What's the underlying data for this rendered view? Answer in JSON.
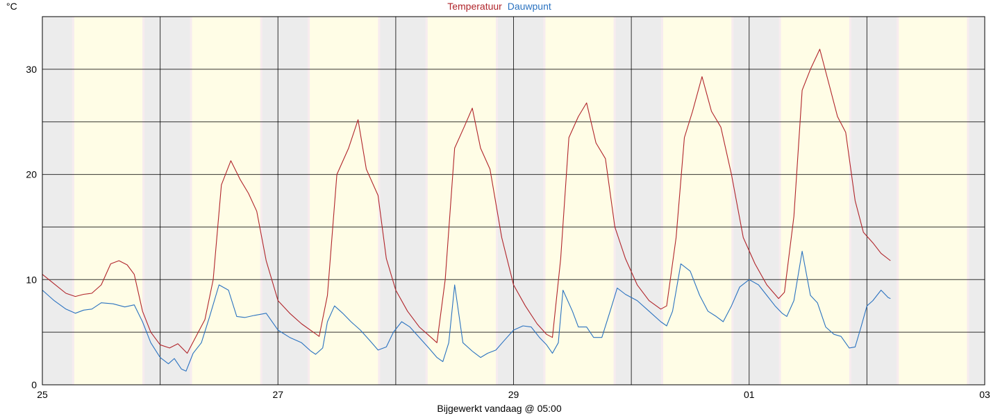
{
  "chart_data": {
    "type": "line",
    "unit": "°C",
    "footer": "Bijgewerkt vandaag @ 05:00",
    "ylim": [
      0,
      35
    ],
    "yticks": [
      0,
      10,
      20,
      30
    ],
    "ygrid": [
      5,
      10,
      15,
      20,
      25,
      30
    ],
    "xlim": [
      0,
      8
    ],
    "xticks": [
      {
        "x": 0,
        "label": "25"
      },
      {
        "x": 2,
        "label": "27"
      },
      {
        "x": 4,
        "label": "29"
      },
      {
        "x": 6,
        "label": "01"
      },
      {
        "x": 8,
        "label": "03"
      }
    ],
    "vgrid": [
      1,
      2,
      3,
      4,
      5,
      6,
      7
    ],
    "day_bands": [
      [
        0.27,
        0.85
      ],
      [
        1.27,
        1.85
      ],
      [
        2.27,
        2.85
      ],
      [
        3.27,
        3.85
      ],
      [
        4.27,
        4.85
      ],
      [
        5.27,
        5.85
      ],
      [
        6.27,
        6.85
      ],
      [
        7.27,
        7.85
      ]
    ],
    "colors": {
      "day": "#fffde6",
      "night": "#ececec",
      "temp": "#b0242a",
      "dew": "#2a72c0",
      "grid": "#000000"
    },
    "series": [
      {
        "name": "Temperatuur",
        "color": "#b0242a",
        "points": [
          [
            0.0,
            10.5
          ],
          [
            0.1,
            9.6
          ],
          [
            0.2,
            8.7
          ],
          [
            0.28,
            8.4
          ],
          [
            0.35,
            8.6
          ],
          [
            0.42,
            8.7
          ],
          [
            0.5,
            9.5
          ],
          [
            0.58,
            11.5
          ],
          [
            0.65,
            11.8
          ],
          [
            0.72,
            11.4
          ],
          [
            0.78,
            10.5
          ],
          [
            0.85,
            7.0
          ],
          [
            0.92,
            5.0
          ],
          [
            1.0,
            3.8
          ],
          [
            1.08,
            3.5
          ],
          [
            1.15,
            3.9
          ],
          [
            1.23,
            3.0
          ],
          [
            1.3,
            4.5
          ],
          [
            1.38,
            6.2
          ],
          [
            1.45,
            10.0
          ],
          [
            1.52,
            19.0
          ],
          [
            1.6,
            21.3
          ],
          [
            1.68,
            19.5
          ],
          [
            1.75,
            18.2
          ],
          [
            1.82,
            16.5
          ],
          [
            1.9,
            11.8
          ],
          [
            2.0,
            8.0
          ],
          [
            2.1,
            6.8
          ],
          [
            2.2,
            5.8
          ],
          [
            2.3,
            5.0
          ],
          [
            2.35,
            4.6
          ],
          [
            2.42,
            8.5
          ],
          [
            2.5,
            20.0
          ],
          [
            2.6,
            22.5
          ],
          [
            2.68,
            25.2
          ],
          [
            2.75,
            20.5
          ],
          [
            2.85,
            18.0
          ],
          [
            2.92,
            12.0
          ],
          [
            3.0,
            9.0
          ],
          [
            3.1,
            7.0
          ],
          [
            3.2,
            5.5
          ],
          [
            3.3,
            4.5
          ],
          [
            3.35,
            4.0
          ],
          [
            3.42,
            10.0
          ],
          [
            3.5,
            22.5
          ],
          [
            3.58,
            24.5
          ],
          [
            3.65,
            26.3
          ],
          [
            3.72,
            22.5
          ],
          [
            3.8,
            20.5
          ],
          [
            3.9,
            14.0
          ],
          [
            4.0,
            9.5
          ],
          [
            4.1,
            7.5
          ],
          [
            4.2,
            5.8
          ],
          [
            4.28,
            4.8
          ],
          [
            4.33,
            4.5
          ],
          [
            4.4,
            12.0
          ],
          [
            4.47,
            23.5
          ],
          [
            4.55,
            25.5
          ],
          [
            4.62,
            26.8
          ],
          [
            4.7,
            23.0
          ],
          [
            4.78,
            21.5
          ],
          [
            4.86,
            15.0
          ],
          [
            4.95,
            12.0
          ],
          [
            5.05,
            9.5
          ],
          [
            5.15,
            8.0
          ],
          [
            5.25,
            7.2
          ],
          [
            5.3,
            7.5
          ],
          [
            5.38,
            14.0
          ],
          [
            5.45,
            23.5
          ],
          [
            5.52,
            26.0
          ],
          [
            5.6,
            29.3
          ],
          [
            5.68,
            26.0
          ],
          [
            5.76,
            24.5
          ],
          [
            5.85,
            20.0
          ],
          [
            5.95,
            14.0
          ],
          [
            6.05,
            11.5
          ],
          [
            6.15,
            9.5
          ],
          [
            6.25,
            8.2
          ],
          [
            6.3,
            8.8
          ],
          [
            6.38,
            16.0
          ],
          [
            6.45,
            28.0
          ],
          [
            6.52,
            30.0
          ],
          [
            6.6,
            31.9
          ],
          [
            6.68,
            28.5
          ],
          [
            6.75,
            25.5
          ],
          [
            6.82,
            24.0
          ],
          [
            6.9,
            17.5
          ],
          [
            6.97,
            14.5
          ],
          [
            7.05,
            13.5
          ],
          [
            7.12,
            12.5
          ],
          [
            7.2,
            11.8
          ]
        ]
      },
      {
        "name": "Dauwpunt",
        "color": "#2a72c0",
        "points": [
          [
            0.0,
            9.0
          ],
          [
            0.1,
            8.0
          ],
          [
            0.2,
            7.2
          ],
          [
            0.28,
            6.8
          ],
          [
            0.35,
            7.1
          ],
          [
            0.42,
            7.2
          ],
          [
            0.5,
            7.8
          ],
          [
            0.6,
            7.7
          ],
          [
            0.7,
            7.4
          ],
          [
            0.78,
            7.6
          ],
          [
            0.85,
            6.0
          ],
          [
            0.92,
            4.0
          ],
          [
            1.0,
            2.6
          ],
          [
            1.07,
            2.0
          ],
          [
            1.12,
            2.5
          ],
          [
            1.18,
            1.5
          ],
          [
            1.22,
            1.3
          ],
          [
            1.28,
            3.0
          ],
          [
            1.35,
            4.0
          ],
          [
            1.42,
            6.5
          ],
          [
            1.5,
            9.5
          ],
          [
            1.58,
            9.0
          ],
          [
            1.65,
            6.5
          ],
          [
            1.72,
            6.4
          ],
          [
            1.8,
            6.6
          ],
          [
            1.9,
            6.8
          ],
          [
            2.0,
            5.2
          ],
          [
            2.1,
            4.5
          ],
          [
            2.2,
            4.0
          ],
          [
            2.28,
            3.2
          ],
          [
            2.32,
            2.9
          ],
          [
            2.38,
            3.5
          ],
          [
            2.42,
            6.0
          ],
          [
            2.48,
            7.5
          ],
          [
            2.55,
            6.8
          ],
          [
            2.62,
            6.0
          ],
          [
            2.7,
            5.2
          ],
          [
            2.78,
            4.2
          ],
          [
            2.85,
            3.3
          ],
          [
            2.92,
            3.6
          ],
          [
            2.98,
            5.0
          ],
          [
            3.05,
            6.0
          ],
          [
            3.12,
            5.5
          ],
          [
            3.2,
            4.5
          ],
          [
            3.28,
            3.5
          ],
          [
            3.35,
            2.6
          ],
          [
            3.4,
            2.2
          ],
          [
            3.45,
            4.0
          ],
          [
            3.5,
            9.5
          ],
          [
            3.57,
            4.0
          ],
          [
            3.65,
            3.2
          ],
          [
            3.72,
            2.6
          ],
          [
            3.78,
            3.0
          ],
          [
            3.85,
            3.3
          ],
          [
            3.92,
            4.2
          ],
          [
            4.0,
            5.2
          ],
          [
            4.08,
            5.6
          ],
          [
            4.15,
            5.5
          ],
          [
            4.22,
            4.5
          ],
          [
            4.28,
            3.8
          ],
          [
            4.33,
            3.0
          ],
          [
            4.38,
            4.0
          ],
          [
            4.42,
            9.0
          ],
          [
            4.5,
            7.0
          ],
          [
            4.55,
            5.5
          ],
          [
            4.62,
            5.5
          ],
          [
            4.68,
            4.5
          ],
          [
            4.75,
            4.5
          ],
          [
            4.82,
            7.0
          ],
          [
            4.88,
            9.2
          ],
          [
            4.95,
            8.6
          ],
          [
            5.05,
            8.0
          ],
          [
            5.15,
            7.0
          ],
          [
            5.25,
            6.0
          ],
          [
            5.3,
            5.6
          ],
          [
            5.35,
            7.0
          ],
          [
            5.42,
            11.5
          ],
          [
            5.5,
            10.8
          ],
          [
            5.58,
            8.5
          ],
          [
            5.65,
            7.0
          ],
          [
            5.72,
            6.5
          ],
          [
            5.78,
            6.0
          ],
          [
            5.85,
            7.5
          ],
          [
            5.92,
            9.3
          ],
          [
            6.0,
            10.0
          ],
          [
            6.08,
            9.5
          ],
          [
            6.15,
            8.5
          ],
          [
            6.22,
            7.5
          ],
          [
            6.28,
            6.8
          ],
          [
            6.32,
            6.5
          ],
          [
            6.38,
            8.0
          ],
          [
            6.45,
            12.7
          ],
          [
            6.52,
            8.5
          ],
          [
            6.58,
            7.8
          ],
          [
            6.65,
            5.5
          ],
          [
            6.72,
            4.8
          ],
          [
            6.78,
            4.6
          ],
          [
            6.85,
            3.5
          ],
          [
            6.9,
            3.6
          ],
          [
            6.95,
            5.5
          ],
          [
            7.0,
            7.5
          ],
          [
            7.05,
            8.0
          ],
          [
            7.12,
            9.0
          ],
          [
            7.18,
            8.3
          ],
          [
            7.2,
            8.2
          ]
        ]
      }
    ]
  }
}
